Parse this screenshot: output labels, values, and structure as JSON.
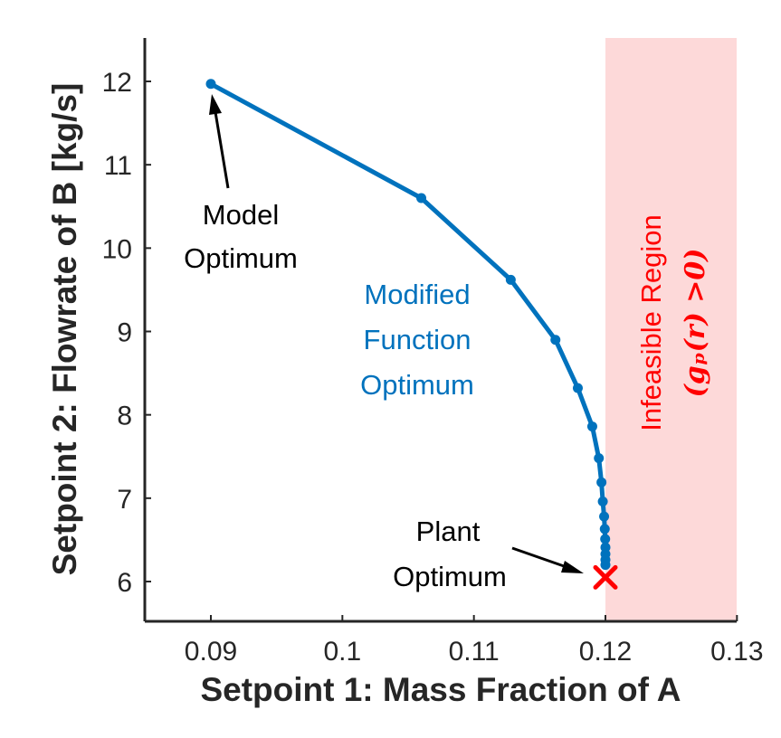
{
  "chart_data": {
    "type": "line",
    "xlabel": "Setpoint 1: Mass Fraction of A",
    "ylabel": "Setpoint 2: Flowrate of B [kg/s]",
    "xlim": [
      0.085,
      0.13
    ],
    "ylim": [
      5.5,
      12.5
    ],
    "x_ticks": [
      0.09,
      0.1,
      0.11,
      0.12,
      0.13
    ],
    "x_tick_labels": [
      "0.09",
      "0.1",
      "0.11",
      "0.12",
      "0.13"
    ],
    "y_ticks": [
      6,
      7,
      8,
      9,
      10,
      11,
      12
    ],
    "y_tick_labels": [
      "6",
      "7",
      "8",
      "9",
      "10",
      "11",
      "12"
    ],
    "grid": false,
    "line_color": "#0072BD",
    "series": [
      {
        "x": [
          0.09,
          0.106,
          0.1128,
          0.1162,
          0.1179,
          0.119,
          0.1195,
          0.1197,
          0.1198,
          0.1199,
          0.11995,
          0.11998,
          0.12,
          0.12,
          0.12,
          0.12
        ],
        "y": [
          11.97,
          10.6,
          9.62,
          8.9,
          8.32,
          7.86,
          7.48,
          7.19,
          6.96,
          6.78,
          6.63,
          6.51,
          6.41,
          6.33,
          6.26,
          6.2
        ]
      }
    ],
    "plant_optimum": {
      "x": 0.12,
      "y": 6.05,
      "marker": "x",
      "color": "#FF0000"
    },
    "infeasible_region": {
      "x_start": 0.12,
      "x_end": 0.13,
      "color": "#FDD9D9",
      "label": "Infeasible Region",
      "math_label": "(gₚ(r) >0)",
      "text_color": "#FF0000"
    },
    "annotations": {
      "model_line1": "Model",
      "model_line2": "Optimum",
      "modified_line1": "Modified",
      "modified_line2": "Function",
      "modified_line3": "Optimum",
      "modified_color": "#0072BD",
      "plant_line1": "Plant",
      "plant_line2": "Optimum"
    }
  }
}
